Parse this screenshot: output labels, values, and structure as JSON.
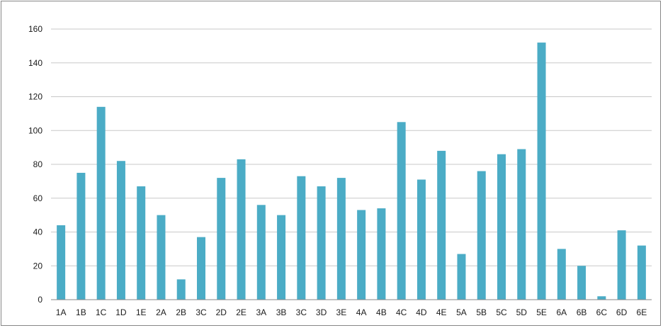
{
  "chart_data": {
    "type": "bar",
    "title": "",
    "xlabel": "",
    "ylabel": "",
    "ylim": [
      0,
      160
    ],
    "yticks": [
      0,
      20,
      40,
      60,
      80,
      100,
      120,
      140,
      160
    ],
    "grid": true,
    "legend": "none",
    "bar_color": "#4bacc6",
    "categories": [
      "1A",
      "1B",
      "1C",
      "1D",
      "1E",
      "2A",
      "2B",
      "3C",
      "2D",
      "2E",
      "3A",
      "3B",
      "3C",
      "3D",
      "3E",
      "4A",
      "4B",
      "4C",
      "4D",
      "4E",
      "5A",
      "5B",
      "5C",
      "5D",
      "5E",
      "6A",
      "6B",
      "6C",
      "6D",
      "6E"
    ],
    "values": [
      44,
      75,
      114,
      82,
      67,
      50,
      12,
      37,
      72,
      83,
      56,
      50,
      73,
      67,
      72,
      53,
      54,
      105,
      71,
      88,
      27,
      76,
      86,
      89,
      152,
      30,
      20,
      2,
      41,
      32
    ]
  }
}
